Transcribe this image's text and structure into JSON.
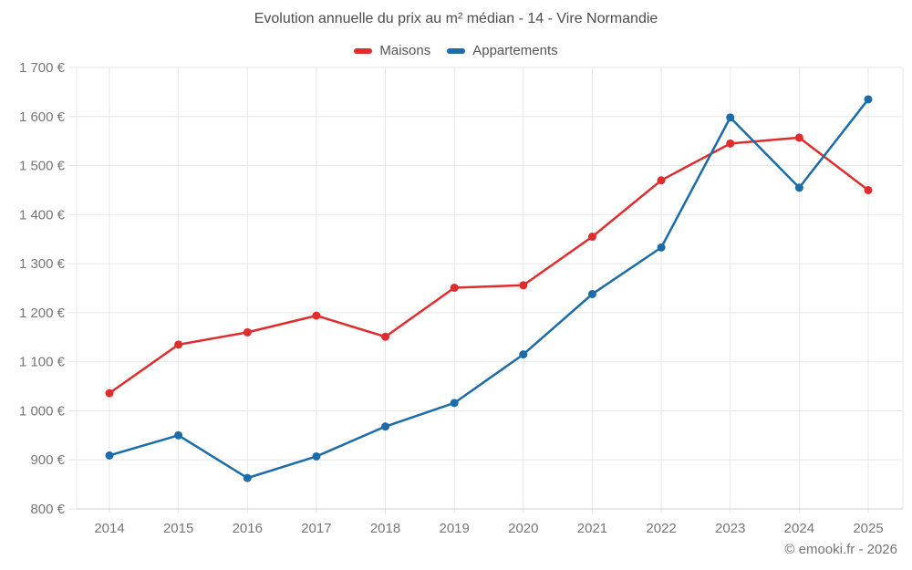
{
  "chart_data": {
    "type": "line",
    "title": "Evolution annuelle du prix au m² médian - 14 - Vire Normandie",
    "categories": [
      "2014",
      "2015",
      "2016",
      "2017",
      "2018",
      "2019",
      "2020",
      "2021",
      "2022",
      "2023",
      "2024",
      "2025"
    ],
    "series": [
      {
        "name": "Maisons",
        "color": "#e02c2c",
        "values": [
          1036,
          1135,
          1160,
          1194,
          1151,
          1251,
          1256,
          1355,
          1470,
          1545,
          1557,
          1450
        ]
      },
      {
        "name": "Appartements",
        "color": "#1b6ca8",
        "values": [
          909,
          950,
          863,
          907,
          968,
          1016,
          1115,
          1238,
          1333,
          1598,
          1455,
          1635
        ]
      }
    ],
    "ylim": [
      800,
      1700
    ],
    "y_tick_step": 100,
    "y_tick_labels": [
      "800 €",
      "900 €",
      "1 000 €",
      "1 100 €",
      "1 200 €",
      "1 300 €",
      "1 400 €",
      "1 500 €",
      "1 600 €",
      "1 700 €"
    ],
    "grid": true,
    "legend_position": "top",
    "footer": "© emooki.fr - 2026",
    "grid_color": "#e7e7e7",
    "axis_color": "#cccccc",
    "tick_label_color": "#757575"
  }
}
